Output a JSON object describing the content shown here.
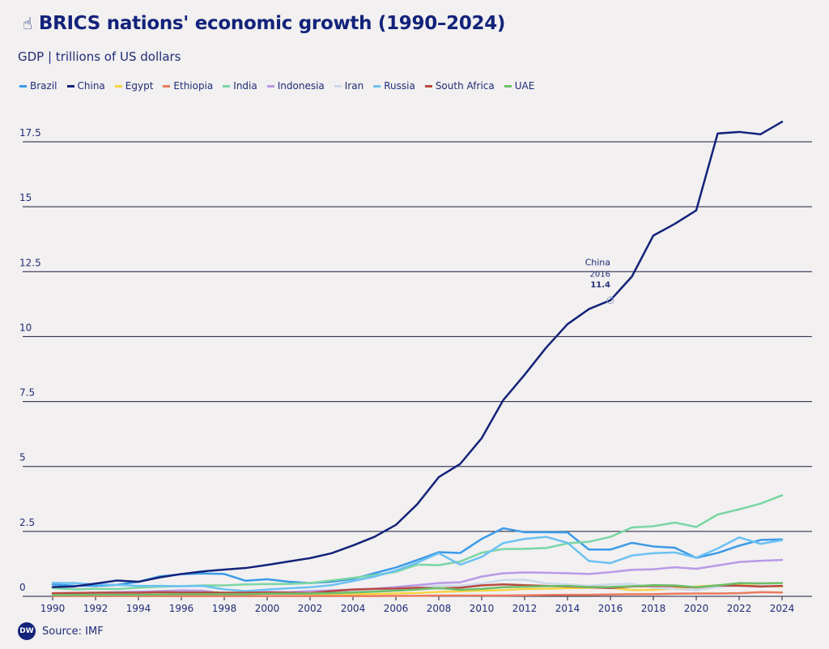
{
  "header": {
    "title": "BRICS nations' economic growth (1990–2024)",
    "title_icon": "hand-pointer-icon",
    "subtitle": "GDP | trillions of US dollars"
  },
  "footer": {
    "logo_text": "DW",
    "source": "Source: IMF"
  },
  "annotation": {
    "series": "China",
    "year": "2016",
    "value": "11.4"
  },
  "colors": {
    "background": "#f2f0f1",
    "grid": "#1b1b3a",
    "text": "#1f2d7a"
  },
  "chart_data": {
    "type": "line",
    "title": "BRICS nations' economic growth (1990–2024)",
    "ylabel": "GDP | trillions of US dollars",
    "ylim": [
      0,
      19
    ],
    "yticks": [
      0,
      2.5,
      5,
      7.5,
      10,
      12.5,
      15,
      17.5
    ],
    "ytick_labels": [
      "0",
      "2.5",
      "5",
      "7.5",
      "10",
      "12.5",
      "15",
      "17.5"
    ],
    "xlim": [
      1990,
      2024
    ],
    "xticks": [
      1990,
      1992,
      1994,
      1996,
      1998,
      2000,
      2002,
      2004,
      2006,
      2008,
      2010,
      2012,
      2014,
      2016,
      2018,
      2020,
      2022,
      2024
    ],
    "xtick_labels": [
      "1990",
      "1992",
      "1994",
      "1996",
      "1998",
      "2000",
      "2002",
      "2004",
      "2006",
      "2008",
      "2010",
      "2012",
      "2014",
      "2016",
      "2018",
      "2020",
      "2022",
      "2024"
    ],
    "grid": "horizontal",
    "legend_position": "top-left",
    "x": [
      1990,
      1991,
      1992,
      1993,
      1994,
      1995,
      1996,
      1997,
      1998,
      1999,
      2000,
      2001,
      2002,
      2003,
      2004,
      2005,
      2006,
      2007,
      2008,
      2009,
      2010,
      2011,
      2012,
      2013,
      2014,
      2015,
      2016,
      2017,
      2018,
      2019,
      2020,
      2021,
      2022,
      2023,
      2024
    ],
    "series": [
      {
        "name": "Brazil",
        "color": "#3c9ae8",
        "values": [
          0.46,
          0.41,
          0.4,
          0.44,
          0.56,
          0.77,
          0.85,
          0.88,
          0.86,
          0.6,
          0.66,
          0.56,
          0.51,
          0.56,
          0.67,
          0.89,
          1.11,
          1.4,
          1.7,
          1.67,
          2.21,
          2.62,
          2.47,
          2.47,
          2.46,
          1.8,
          1.8,
          2.06,
          1.92,
          1.87,
          1.48,
          1.67,
          1.95,
          2.17,
          2.19
        ]
      },
      {
        "name": "China",
        "color": "#13237a",
        "values": [
          0.36,
          0.38,
          0.49,
          0.61,
          0.56,
          0.73,
          0.86,
          0.96,
          1.03,
          1.09,
          1.21,
          1.34,
          1.47,
          1.66,
          1.96,
          2.29,
          2.75,
          3.55,
          4.59,
          5.1,
          6.09,
          7.55,
          8.53,
          9.57,
          10.48,
          11.06,
          11.4,
          12.31,
          13.89,
          14.34,
          14.86,
          17.82,
          17.88,
          17.79,
          18.27
        ]
      },
      {
        "name": "Egypt",
        "color": "#f5d547",
        "values": [
          0.05,
          0.04,
          0.04,
          0.05,
          0.05,
          0.06,
          0.07,
          0.08,
          0.08,
          0.09,
          0.1,
          0.1,
          0.09,
          0.08,
          0.08,
          0.09,
          0.11,
          0.13,
          0.17,
          0.19,
          0.22,
          0.24,
          0.28,
          0.29,
          0.31,
          0.33,
          0.33,
          0.24,
          0.25,
          0.3,
          0.38,
          0.42,
          0.48,
          0.4,
          0.38
        ]
      },
      {
        "name": "Ethiopia",
        "color": "#ea7a5e",
        "values": [
          0.01,
          0.01,
          0.01,
          0.01,
          0.01,
          0.01,
          0.01,
          0.01,
          0.01,
          0.01,
          0.01,
          0.01,
          0.01,
          0.01,
          0.01,
          0.01,
          0.02,
          0.02,
          0.03,
          0.03,
          0.03,
          0.03,
          0.04,
          0.05,
          0.06,
          0.06,
          0.07,
          0.08,
          0.08,
          0.1,
          0.11,
          0.11,
          0.12,
          0.16,
          0.15
        ]
      },
      {
        "name": "India",
        "color": "#7ad6a4",
        "values": [
          0.32,
          0.27,
          0.29,
          0.28,
          0.33,
          0.37,
          0.39,
          0.42,
          0.42,
          0.46,
          0.47,
          0.48,
          0.51,
          0.61,
          0.71,
          0.82,
          0.94,
          1.22,
          1.2,
          1.34,
          1.68,
          1.82,
          1.83,
          1.86,
          2.04,
          2.1,
          2.29,
          2.65,
          2.7,
          2.84,
          2.67,
          3.15,
          3.35,
          3.57,
          3.89
        ]
      },
      {
        "name": "Indonesia",
        "color": "#b99ae6",
        "values": [
          0.11,
          0.13,
          0.14,
          0.16,
          0.18,
          0.2,
          0.23,
          0.22,
          0.1,
          0.14,
          0.17,
          0.16,
          0.2,
          0.23,
          0.26,
          0.29,
          0.36,
          0.43,
          0.51,
          0.54,
          0.76,
          0.89,
          0.92,
          0.91,
          0.89,
          0.86,
          0.93,
          1.02,
          1.04,
          1.12,
          1.06,
          1.19,
          1.32,
          1.37,
          1.4
        ]
      },
      {
        "name": "Iran",
        "color": "#cdd9ea",
        "values": [
          0.12,
          0.14,
          0.12,
          0.08,
          0.07,
          0.1,
          0.12,
          0.12,
          0.11,
          0.11,
          0.11,
          0.13,
          0.14,
          0.16,
          0.2,
          0.23,
          0.27,
          0.34,
          0.41,
          0.41,
          0.49,
          0.63,
          0.64,
          0.5,
          0.46,
          0.41,
          0.46,
          0.48,
          0.33,
          0.28,
          0.24,
          0.36,
          0.41,
          0.4,
          0.41
        ]
      },
      {
        "name": "Russia",
        "color": "#6cc1f3",
        "values": [
          0.52,
          0.51,
          0.46,
          0.44,
          0.4,
          0.4,
          0.39,
          0.4,
          0.27,
          0.2,
          0.26,
          0.31,
          0.35,
          0.43,
          0.59,
          0.76,
          0.99,
          1.3,
          1.66,
          1.22,
          1.52,
          2.05,
          2.21,
          2.29,
          2.06,
          1.36,
          1.28,
          1.57,
          1.66,
          1.69,
          1.49,
          1.84,
          2.27,
          2.02,
          2.16
        ]
      },
      {
        "name": "South Africa",
        "color": "#b84a42",
        "values": [
          0.12,
          0.13,
          0.14,
          0.14,
          0.14,
          0.16,
          0.15,
          0.15,
          0.14,
          0.14,
          0.15,
          0.14,
          0.13,
          0.2,
          0.26,
          0.29,
          0.3,
          0.33,
          0.31,
          0.33,
          0.42,
          0.46,
          0.43,
          0.4,
          0.38,
          0.35,
          0.32,
          0.38,
          0.4,
          0.39,
          0.34,
          0.42,
          0.41,
          0.38,
          0.4
        ]
      },
      {
        "name": "UAE",
        "color": "#6dbf6a",
        "values": [
          0.05,
          0.05,
          0.06,
          0.06,
          0.06,
          0.07,
          0.08,
          0.08,
          0.08,
          0.08,
          0.1,
          0.1,
          0.11,
          0.12,
          0.15,
          0.18,
          0.22,
          0.26,
          0.32,
          0.25,
          0.29,
          0.35,
          0.37,
          0.39,
          0.4,
          0.36,
          0.36,
          0.39,
          0.43,
          0.42,
          0.35,
          0.42,
          0.51,
          0.5,
          0.51
        ]
      }
    ]
  }
}
